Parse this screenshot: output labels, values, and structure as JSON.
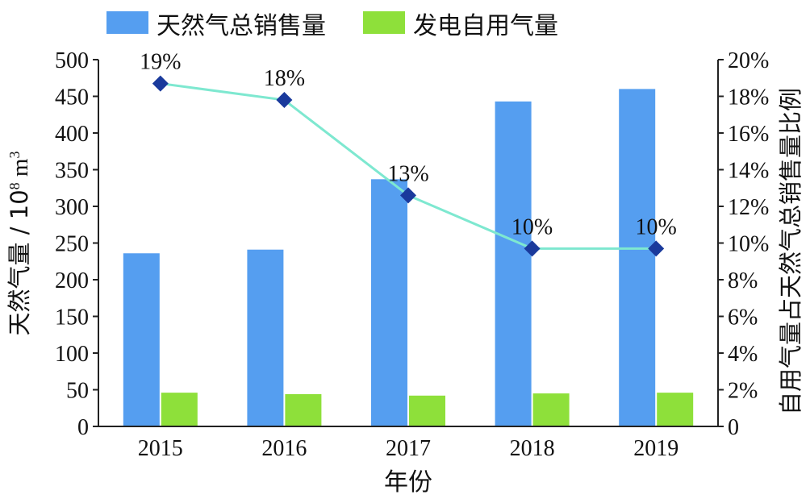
{
  "chart_data": {
    "type": "bar+line",
    "categories": [
      "2015",
      "2016",
      "2017",
      "2018",
      "2019"
    ],
    "series": [
      {
        "name": "天然气总销售量",
        "axis": "left",
        "type": "bar",
        "color": "#559ef0",
        "values": [
          236,
          241,
          337,
          443,
          460
        ]
      },
      {
        "name": "发电自用气量",
        "axis": "left",
        "type": "bar",
        "color": "#8ee03a",
        "values": [
          46,
          44,
          42,
          45,
          46
        ]
      },
      {
        "name": "自用气量占天然气总销售量比例",
        "axis": "right",
        "type": "line",
        "line_color": "#7ee8d0",
        "marker_color": "#1a3a9c",
        "values": [
          18.7,
          17.8,
          12.6,
          9.7,
          9.7
        ],
        "data_labels": [
          "19%",
          "18%",
          "13%",
          "10%",
          "10%"
        ]
      }
    ],
    "xlabel": "年份",
    "ylabel_left": "天然气量 / 10",
    "ylabel_left_sup": "8",
    "ylabel_left_unit": " m",
    "ylabel_left_unit_sup": "3",
    "ylabel_right": "自用气量占天然气总销售量比例",
    "ylim_left": [
      0,
      500
    ],
    "ylim_right": [
      0,
      20
    ],
    "yticks_left": [
      "0",
      "50",
      "100",
      "150",
      "200",
      "250",
      "300",
      "350",
      "400",
      "450",
      "500"
    ],
    "yticks_right": [
      "0",
      "2%",
      "4%",
      "6%",
      "8%",
      "10%",
      "12%",
      "14%",
      "16%",
      "18%",
      "20%"
    ],
    "legend_position": "top"
  }
}
